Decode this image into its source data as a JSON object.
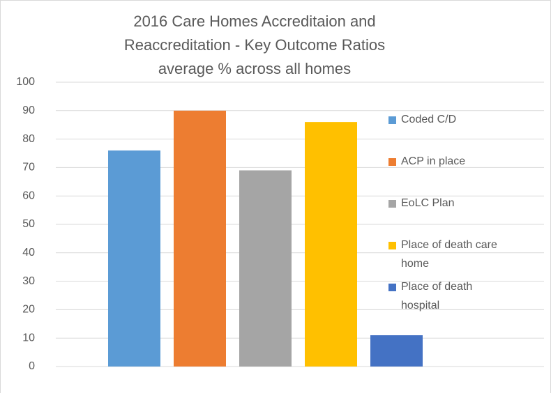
{
  "chart_data": {
    "type": "bar",
    "title": [
      "2016 Care Homes Accreditaion and",
      "Reaccreditation - Key Outcome Ratios",
      "average % across all homes"
    ],
    "categories": [
      null
    ],
    "series": [
      {
        "name": "Coded C/D",
        "color": "#5b9bd5",
        "values": [
          76
        ]
      },
      {
        "name": "ACP in place",
        "color": "#ed7d31",
        "values": [
          90
        ]
      },
      {
        "name": "EoLC Plan",
        "color": "#a5a5a5",
        "values": [
          69
        ]
      },
      {
        "name": "Place of death care home",
        "color": "#ffc000",
        "values": [
          86
        ]
      },
      {
        "name": "Place of death hospital",
        "color": "#4472c4",
        "values": [
          11
        ]
      }
    ],
    "ylim": [
      0,
      100
    ],
    "yticks": [
      0,
      10,
      20,
      30,
      40,
      50,
      60,
      70,
      80,
      90,
      100
    ],
    "grid": true,
    "legend": "right"
  }
}
